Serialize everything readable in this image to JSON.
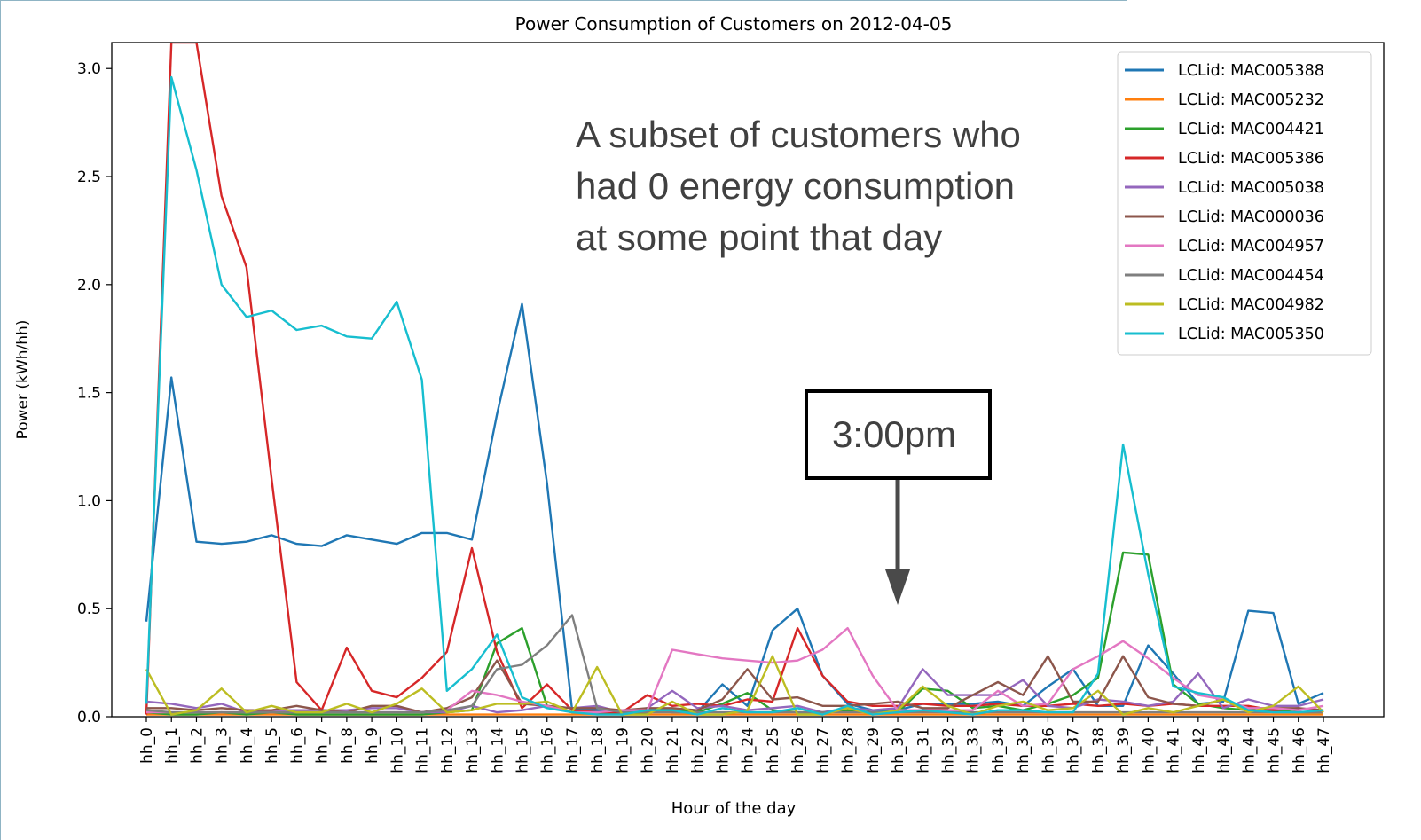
{
  "chart_data": {
    "type": "line",
    "title": "Power Consumption of Customers on 2012-04-05",
    "xlabel": "Hour of the day",
    "ylabel": "Power (kWh/hh)",
    "ylim": [
      0,
      3.12
    ],
    "yticks": [
      0.0,
      0.5,
      1.0,
      1.5,
      2.0,
      2.5,
      3.0
    ],
    "ytick_labels": [
      "0.0",
      "0.5",
      "1.0",
      "1.5",
      "2.0",
      "2.5",
      "3.0"
    ],
    "grid": false,
    "legend_position": "top-right",
    "categories": [
      "hh_0",
      "hh_1",
      "hh_2",
      "hh_3",
      "hh_4",
      "hh_5",
      "hh_6",
      "hh_7",
      "hh_8",
      "hh_9",
      "hh_10",
      "hh_11",
      "hh_12",
      "hh_13",
      "hh_14",
      "hh_15",
      "hh_16",
      "hh_17",
      "hh_18",
      "hh_19",
      "hh_20",
      "hh_21",
      "hh_22",
      "hh_23",
      "hh_24",
      "hh_25",
      "hh_26",
      "hh_27",
      "hh_28",
      "hh_29",
      "hh_30",
      "hh_31",
      "hh_32",
      "hh_33",
      "hh_34",
      "hh_35",
      "hh_36",
      "hh_37",
      "hh_38",
      "hh_39",
      "hh_40",
      "hh_41",
      "hh_42",
      "hh_43",
      "hh_44",
      "hh_45",
      "hh_46",
      "hh_47"
    ],
    "series": [
      {
        "name": "LCLid: MAC005388",
        "color": "#1f77b4",
        "values": [
          0.44,
          1.57,
          0.81,
          0.8,
          0.81,
          0.84,
          0.8,
          0.79,
          0.84,
          0.82,
          0.8,
          0.85,
          0.85,
          0.82,
          1.4,
          1.91,
          1.08,
          0.03,
          0.03,
          0.02,
          0.03,
          0.02,
          0.02,
          0.15,
          0.05,
          0.4,
          0.5,
          0.19,
          0.06,
          0.03,
          0.03,
          0.06,
          0.06,
          0.06,
          0.07,
          0.05,
          0.14,
          0.22,
          0.05,
          0.05,
          0.33,
          0.2,
          0.06,
          0.07,
          0.49,
          0.48,
          0.06,
          0.11
        ]
      },
      {
        "name": "LCLid: MAC005232",
        "color": "#ff7f0e",
        "values": [
          0.01,
          0.01,
          0.01,
          0.01,
          0.01,
          0.01,
          0.01,
          0.01,
          0.01,
          0.01,
          0.01,
          0.01,
          0.01,
          0.01,
          0.01,
          0.01,
          0.01,
          0.01,
          0.01,
          0.01,
          0.01,
          0.01,
          0.01,
          0.01,
          0.01,
          0.01,
          0.01,
          0.01,
          0.01,
          0.01,
          0.01,
          0.01,
          0.01,
          0.01,
          0.01,
          0.01,
          0.01,
          0.01,
          0.01,
          0.01,
          0.01,
          0.01,
          0.01,
          0.01,
          0.01,
          0.01,
          0.01,
          0.01
        ]
      },
      {
        "name": "LCLid: MAC004421",
        "color": "#2ca02c",
        "values": [
          0.02,
          0.01,
          0.01,
          0.02,
          0.01,
          0.02,
          0.01,
          0.01,
          0.01,
          0.01,
          0.01,
          0.01,
          0.02,
          0.03,
          0.34,
          0.41,
          0.05,
          0.02,
          0.02,
          0.01,
          0.02,
          0.03,
          0.02,
          0.06,
          0.11,
          0.03,
          0.02,
          0.02,
          0.03,
          0.02,
          0.02,
          0.13,
          0.12,
          0.04,
          0.05,
          0.03,
          0.06,
          0.1,
          0.18,
          0.76,
          0.75,
          0.15,
          0.06,
          0.04,
          0.03,
          0.03,
          0.02,
          0.02
        ]
      },
      {
        "name": "LCLid: MAC005386",
        "color": "#d62728",
        "values": [
          0.01,
          3.12,
          3.12,
          2.41,
          2.08,
          1.1,
          0.16,
          0.03,
          0.32,
          0.12,
          0.09,
          0.18,
          0.3,
          0.78,
          0.3,
          0.04,
          0.15,
          0.03,
          0.02,
          0.02,
          0.1,
          0.05,
          0.06,
          0.05,
          0.08,
          0.07,
          0.41,
          0.19,
          0.07,
          0.05,
          0.05,
          0.06,
          0.05,
          0.05,
          0.06,
          0.05,
          0.05,
          0.06,
          0.05,
          0.06,
          0.05,
          0.06,
          0.05,
          0.05,
          0.05,
          0.03,
          0.04,
          0.02
        ]
      },
      {
        "name": "LCLid: MAC005038",
        "color": "#9467bd",
        "values": [
          0.07,
          0.06,
          0.04,
          0.06,
          0.02,
          0.03,
          0.03,
          0.03,
          0.03,
          0.04,
          0.04,
          0.02,
          0.02,
          0.05,
          0.02,
          0.03,
          0.05,
          0.04,
          0.05,
          0.02,
          0.04,
          0.12,
          0.04,
          0.05,
          0.03,
          0.04,
          0.05,
          0.02,
          0.04,
          0.03,
          0.04,
          0.22,
          0.1,
          0.1,
          0.1,
          0.17,
          0.05,
          0.04,
          0.08,
          0.07,
          0.05,
          0.07,
          0.2,
          0.04,
          0.08,
          0.05,
          0.05,
          0.08
        ]
      },
      {
        "name": "LCLid: MAC000036",
        "color": "#8c564b",
        "values": [
          0.04,
          0.04,
          0.03,
          0.04,
          0.03,
          0.03,
          0.05,
          0.03,
          0.02,
          0.05,
          0.05,
          0.02,
          0.04,
          0.09,
          0.26,
          0.06,
          0.05,
          0.04,
          0.04,
          0.03,
          0.04,
          0.04,
          0.03,
          0.08,
          0.22,
          0.08,
          0.09,
          0.05,
          0.05,
          0.06,
          0.07,
          0.04,
          0.04,
          0.1,
          0.16,
          0.1,
          0.28,
          0.07,
          0.07,
          0.28,
          0.09,
          0.06,
          0.05,
          0.08,
          0.04,
          0.04,
          0.04,
          0.03
        ]
      },
      {
        "name": "LCLid: MAC004957",
        "color": "#e377c2",
        "values": [
          0.02,
          0.02,
          0.02,
          0.02,
          0.02,
          0.02,
          0.02,
          0.02,
          0.02,
          0.02,
          0.02,
          0.02,
          0.03,
          0.12,
          0.1,
          0.07,
          0.05,
          0.02,
          0.02,
          0.03,
          0.03,
          0.31,
          0.29,
          0.27,
          0.26,
          0.25,
          0.26,
          0.31,
          0.41,
          0.19,
          0.03,
          0.03,
          0.03,
          0.03,
          0.12,
          0.05,
          0.06,
          0.22,
          0.28,
          0.35,
          0.27,
          0.18,
          0.1,
          0.08,
          0.04,
          0.04,
          0.03,
          0.05
        ]
      },
      {
        "name": "LCLid: MAC004454",
        "color": "#7f7f7f",
        "values": [
          0.03,
          0.02,
          0.02,
          0.02,
          0.02,
          0.02,
          0.02,
          0.02,
          0.02,
          0.02,
          0.02,
          0.02,
          0.03,
          0.05,
          0.22,
          0.24,
          0.33,
          0.47,
          0.04,
          0.02,
          0.02,
          0.02,
          0.02,
          0.02,
          0.02,
          0.02,
          0.02,
          0.02,
          0.02,
          0.02,
          0.02,
          0.02,
          0.02,
          0.02,
          0.02,
          0.02,
          0.02,
          0.02,
          0.02,
          0.02,
          0.02,
          0.02,
          0.02,
          0.02,
          0.02,
          0.02,
          0.02,
          0.02
        ]
      },
      {
        "name": "LCLid: MAC004982",
        "color": "#bcbd22",
        "values": [
          0.22,
          0.01,
          0.03,
          0.13,
          0.02,
          0.05,
          0.02,
          0.02,
          0.06,
          0.02,
          0.06,
          0.13,
          0.02,
          0.03,
          0.06,
          0.06,
          0.07,
          0.02,
          0.23,
          0.01,
          0.01,
          0.07,
          0.01,
          0.01,
          0.03,
          0.28,
          0.01,
          0.01,
          0.04,
          0.01,
          0.03,
          0.14,
          0.05,
          0.01,
          0.05,
          0.07,
          0.03,
          0.04,
          0.12,
          0.01,
          0.04,
          0.02,
          0.05,
          0.08,
          0.02,
          0.05,
          0.14,
          0.02
        ]
      },
      {
        "name": "LCLid: MAC005350",
        "color": "#17becf",
        "values": [
          0.06,
          2.96,
          2.53,
          2.0,
          1.85,
          1.88,
          1.79,
          1.81,
          1.76,
          1.75,
          1.92,
          1.56,
          0.12,
          0.22,
          0.38,
          0.09,
          0.04,
          0.02,
          0.01,
          0.01,
          0.03,
          0.03,
          0.01,
          0.04,
          0.02,
          0.02,
          0.04,
          0.01,
          0.05,
          0.01,
          0.02,
          0.03,
          0.02,
          0.01,
          0.03,
          0.03,
          0.02,
          0.02,
          0.2,
          1.26,
          0.66,
          0.14,
          0.11,
          0.09,
          0.03,
          0.02,
          0.02,
          0.03
        ]
      }
    ],
    "annotations": {
      "note_lines": [
        "A subset of customers who",
        "had 0 energy consumption",
        "at some point that day"
      ],
      "box_label": "3:00pm",
      "arrow_category": "hh_30"
    }
  },
  "colors": {
    "axis": "#000000",
    "annotation_text": "#404040",
    "arrow": "#4a4a4a",
    "frame_accent": "#5b9bb0"
  }
}
